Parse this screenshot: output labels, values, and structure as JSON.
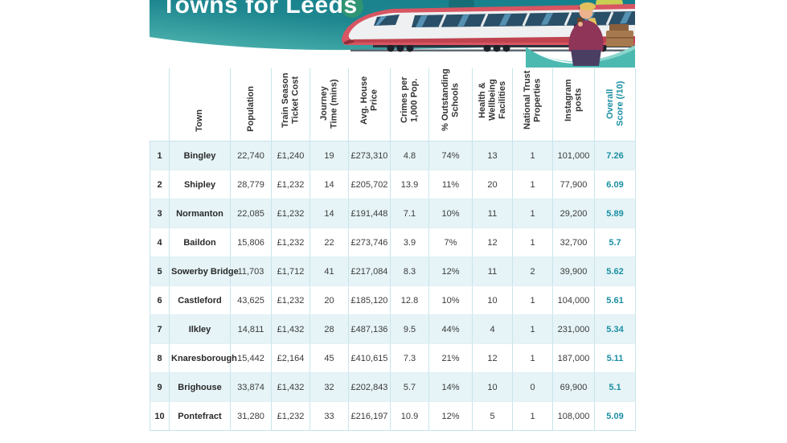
{
  "header": {
    "title": "Towns for Leeds"
  },
  "colors": {
    "banner_teal_dark": "#17818d",
    "banner_teal_light": "#52b7b1",
    "accent_teal": "#1b8fa3",
    "row_shade": "#e6f4f7",
    "grid_line": "#c9e4ea",
    "train_red": "#d85562",
    "score_text": "#1b8fa3"
  },
  "chart_data": {
    "type": "table",
    "title": "Towns for Leeds",
    "columns": [
      "Town",
      "Population",
      "Train Season Ticket Cost",
      "Journey Time (mins)",
      "Avg. House Price",
      "Crimes per 1,000 Pop.",
      "% Outstanding Schools",
      "Health & Wellbeing Facilities",
      "National Trust Properties",
      "Instagram posts",
      "Overall Score (/10)"
    ],
    "rows": [
      {
        "rank": "1",
        "town": "Bingley",
        "population": "22,740",
        "ticket": "£1,240",
        "journey": "19",
        "house": "£273,310",
        "crimes": "4.8",
        "schools": "74%",
        "health": "13",
        "trust": "1",
        "instagram": "101,000",
        "score": "7.26"
      },
      {
        "rank": "2",
        "town": "Shipley",
        "population": "28,779",
        "ticket": "£1,232",
        "journey": "14",
        "house": "£205,702",
        "crimes": "13.9",
        "schools": "11%",
        "health": "20",
        "trust": "1",
        "instagram": "77,900",
        "score": "6.09"
      },
      {
        "rank": "3",
        "town": "Normanton",
        "population": "22,085",
        "ticket": "£1,232",
        "journey": "14",
        "house": "£191,448",
        "crimes": "7.1",
        "schools": "10%",
        "health": "11",
        "trust": "1",
        "instagram": "29,200",
        "score": "5.89"
      },
      {
        "rank": "4",
        "town": "Baildon",
        "population": "15,806",
        "ticket": "£1,232",
        "journey": "22",
        "house": "£273,746",
        "crimes": "3.9",
        "schools": "7%",
        "health": "12",
        "trust": "1",
        "instagram": "32,700",
        "score": "5.7"
      },
      {
        "rank": "5",
        "town": "Sowerby Bridge",
        "population": "11,703",
        "ticket": "£1,712",
        "journey": "41",
        "house": "£217,084",
        "crimes": "8.3",
        "schools": "12%",
        "health": "11",
        "trust": "2",
        "instagram": "39,900",
        "score": "5.62"
      },
      {
        "rank": "6",
        "town": "Castleford",
        "population": "43,625",
        "ticket": "£1,232",
        "journey": "20",
        "house": "£185,120",
        "crimes": "12.8",
        "schools": "10%",
        "health": "10",
        "trust": "1",
        "instagram": "104,000",
        "score": "5.61"
      },
      {
        "rank": "7",
        "town": "Ilkley",
        "population": "14,811",
        "ticket": "£1,432",
        "journey": "28",
        "house": "£487,136",
        "crimes": "9.5",
        "schools": "44%",
        "health": "4",
        "trust": "1",
        "instagram": "231,000",
        "score": "5.34"
      },
      {
        "rank": "8",
        "town": "Knaresborough",
        "population": "15,442",
        "ticket": "£2,164",
        "journey": "45",
        "house": "£410,615",
        "crimes": "7.3",
        "schools": "21%",
        "health": "12",
        "trust": "1",
        "instagram": "187,000",
        "score": "5.11"
      },
      {
        "rank": "9",
        "town": "Brighouse",
        "population": "33,874",
        "ticket": "£1,432",
        "journey": "32",
        "house": "£202,843",
        "crimes": "5.7",
        "schools": "14%",
        "health": "10",
        "trust": "0",
        "instagram": "69,900",
        "score": "5.1"
      },
      {
        "rank": "10",
        "town": "Pontefract",
        "population": "31,280",
        "ticket": "£1,232",
        "journey": "33",
        "house": "£216,197",
        "crimes": "10.9",
        "schools": "12%",
        "health": "5",
        "trust": "1",
        "instagram": "108,000",
        "score": "5.09"
      }
    ]
  },
  "table": {
    "columns": [
      "Town",
      "Population",
      "Train Season Ticket Cost",
      "Journey Time (mins)",
      "Avg. House Price",
      "Crimes per 1,000 Pop.",
      "% Outstanding Schools",
      "Health & Wellbeing Facilities",
      "National Trust Properties",
      "Instagram posts",
      "Overall Score (/10)"
    ],
    "rows": [
      {
        "rank": "1",
        "town": "Bingley",
        "population": "22,740",
        "ticket": "£1,240",
        "journey": "19",
        "house": "£273,310",
        "crimes": "4.8",
        "schools": "74%",
        "health": "13",
        "trust": "1",
        "instagram": "101,000",
        "score": "7.26"
      },
      {
        "rank": "2",
        "town": "Shipley",
        "population": "28,779",
        "ticket": "£1,232",
        "journey": "14",
        "house": "£205,702",
        "crimes": "13.9",
        "schools": "11%",
        "health": "20",
        "trust": "1",
        "instagram": "77,900",
        "score": "6.09"
      },
      {
        "rank": "3",
        "town": "Normanton",
        "population": "22,085",
        "ticket": "£1,232",
        "journey": "14",
        "house": "£191,448",
        "crimes": "7.1",
        "schools": "10%",
        "health": "11",
        "trust": "1",
        "instagram": "29,200",
        "score": "5.89"
      },
      {
        "rank": "4",
        "town": "Baildon",
        "population": "15,806",
        "ticket": "£1,232",
        "journey": "22",
        "house": "£273,746",
        "crimes": "3.9",
        "schools": "7%",
        "health": "12",
        "trust": "1",
        "instagram": "32,700",
        "score": "5.7"
      },
      {
        "rank": "5",
        "town": "Sowerby Bridge",
        "population": "11,703",
        "ticket": "£1,712",
        "journey": "41",
        "house": "£217,084",
        "crimes": "8.3",
        "schools": "12%",
        "health": "11",
        "trust": "2",
        "instagram": "39,900",
        "score": "5.62"
      },
      {
        "rank": "6",
        "town": "Castleford",
        "population": "43,625",
        "ticket": "£1,232",
        "journey": "20",
        "house": "£185,120",
        "crimes": "12.8",
        "schools": "10%",
        "health": "10",
        "trust": "1",
        "instagram": "104,000",
        "score": "5.61"
      },
      {
        "rank": "7",
        "town": "Ilkley",
        "population": "14,811",
        "ticket": "£1,432",
        "journey": "28",
        "house": "£487,136",
        "crimes": "9.5",
        "schools": "44%",
        "health": "4",
        "trust": "1",
        "instagram": "231,000",
        "score": "5.34"
      },
      {
        "rank": "8",
        "town": "Knaresborough",
        "population": "15,442",
        "ticket": "£2,164",
        "journey": "45",
        "house": "£410,615",
        "crimes": "7.3",
        "schools": "21%",
        "health": "12",
        "trust": "1",
        "instagram": "187,000",
        "score": "5.11"
      },
      {
        "rank": "9",
        "town": "Brighouse",
        "population": "33,874",
        "ticket": "£1,432",
        "journey": "32",
        "house": "£202,843",
        "crimes": "5.7",
        "schools": "14%",
        "health": "10",
        "trust": "0",
        "instagram": "69,900",
        "score": "5.1"
      },
      {
        "rank": "10",
        "town": "Pontefract",
        "population": "31,280",
        "ticket": "£1,232",
        "journey": "33",
        "house": "£216,197",
        "crimes": "10.9",
        "schools": "12%",
        "health": "5",
        "trust": "1",
        "instagram": "108,000",
        "score": "5.09"
      }
    ]
  }
}
